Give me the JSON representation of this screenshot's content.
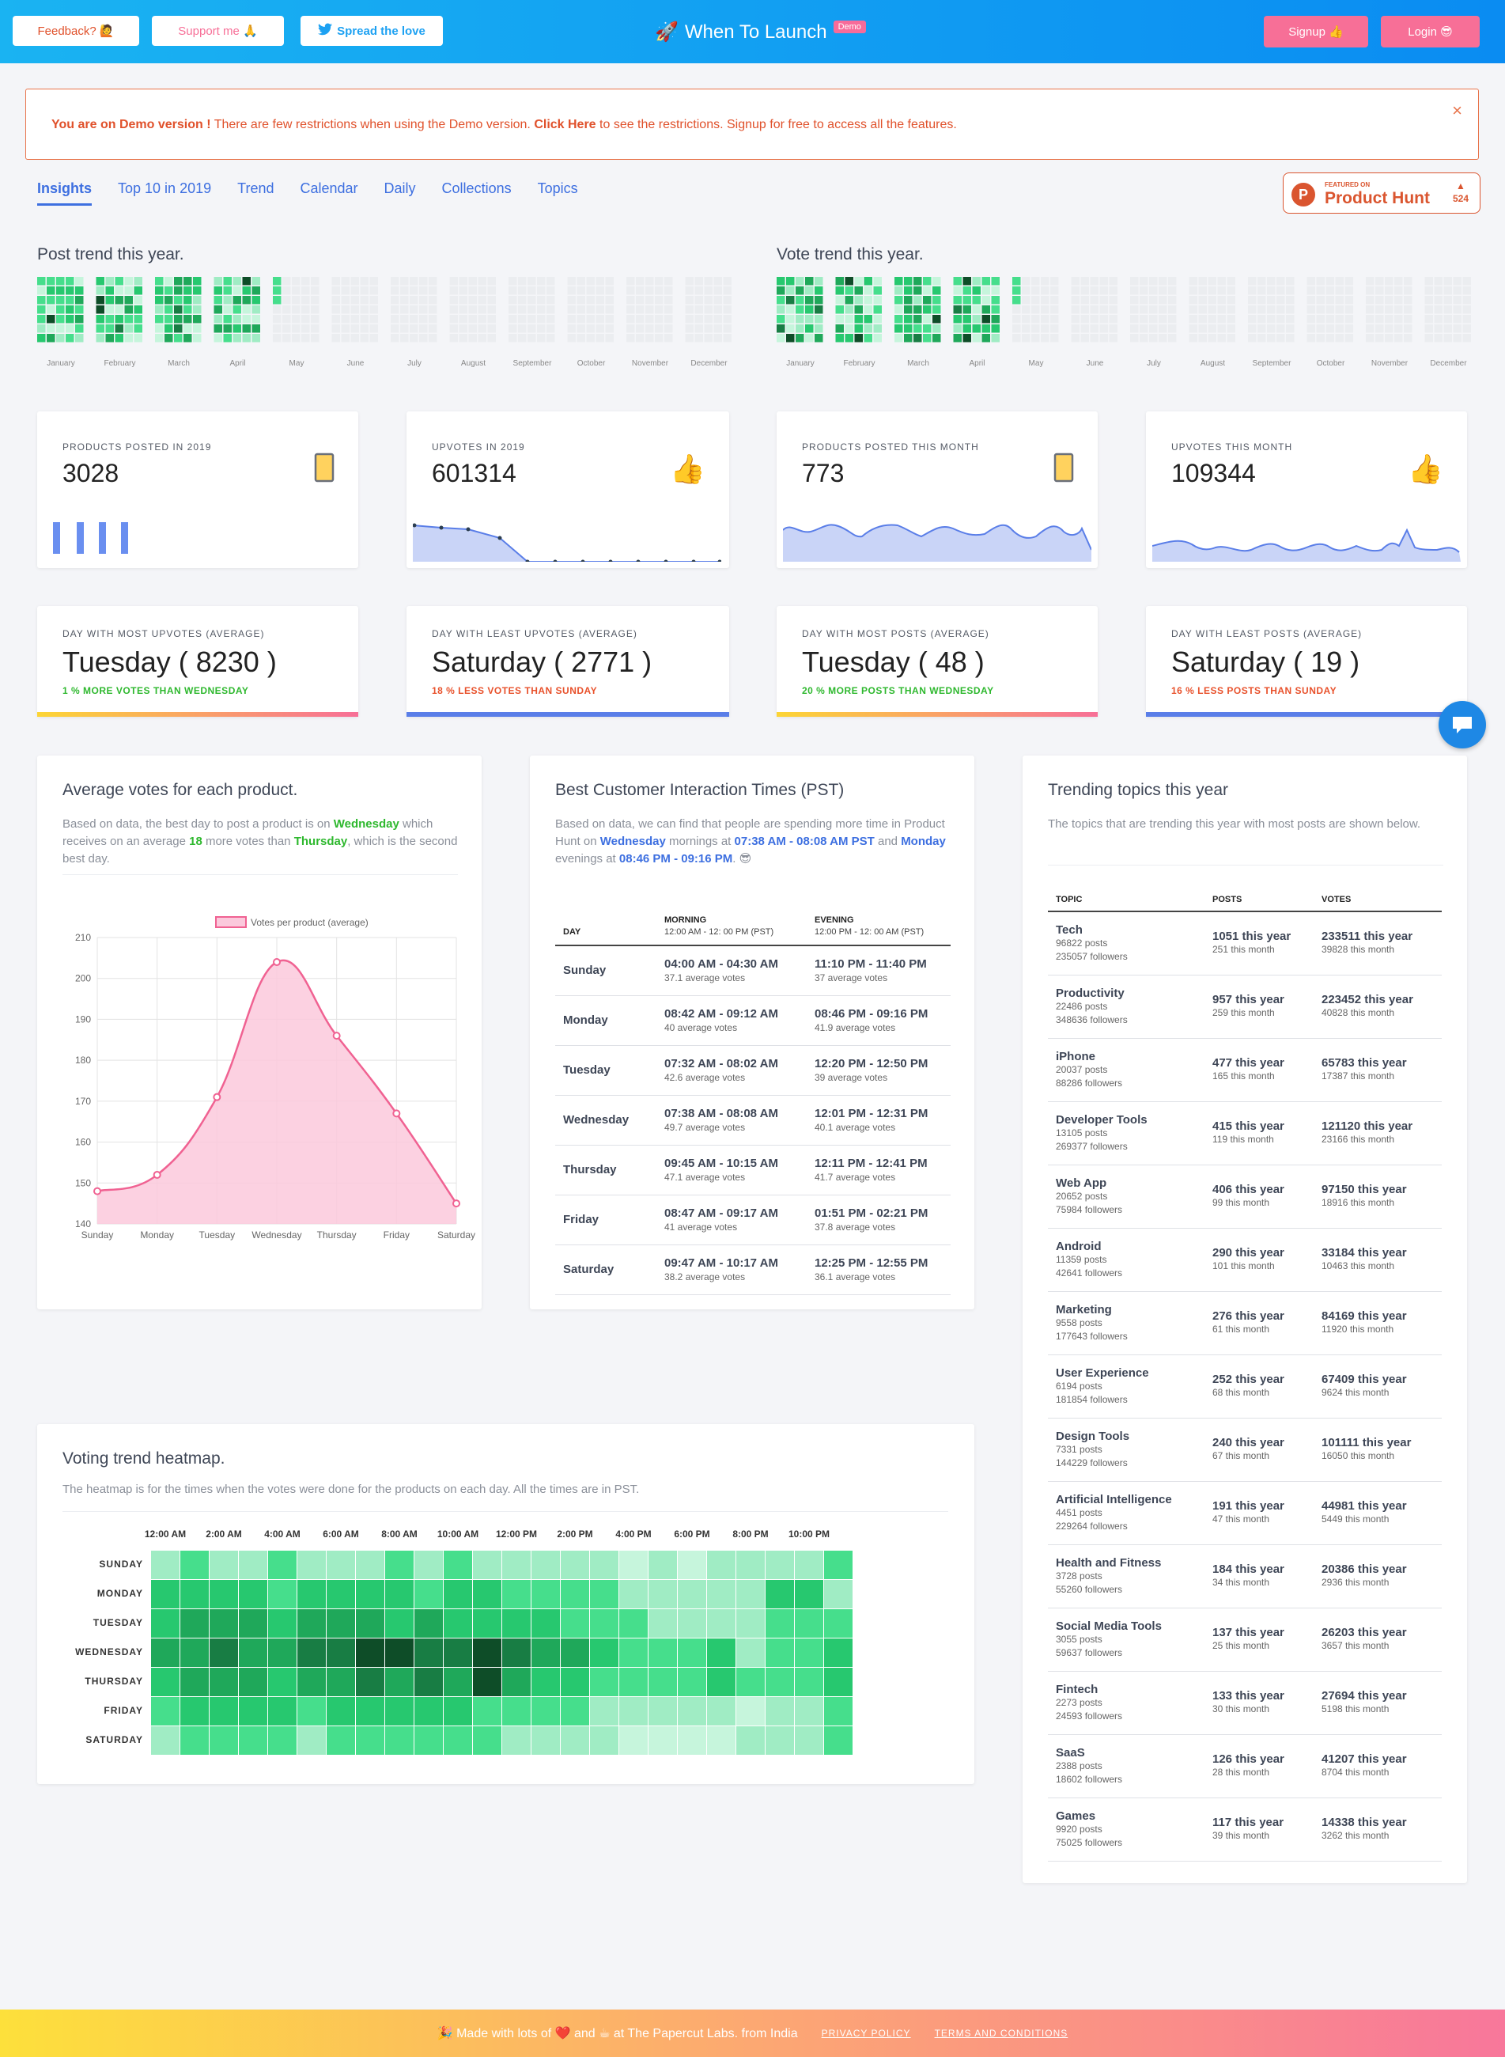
{
  "topbar": {
    "feedback_label": "Feedback? 🙋",
    "support_label": "Support me 🙏",
    "spread_label": "Spread the love",
    "app_title": "When To Launch",
    "demo_badge": "Demo",
    "signup_label": "Signup 👍",
    "login_label": "Login 😎"
  },
  "alert": {
    "lead": "You are on Demo version !",
    "text1": " There are few restrictions when using the Demo version. ",
    "link": "Click Here",
    "text2": " to see the restrictions. Signup for free to access all the features.",
    "close": "×"
  },
  "tabs": [
    "Insights",
    "Top 10 in 2019",
    "Trend",
    "Calendar",
    "Daily",
    "Collections",
    "Topics"
  ],
  "producthunt": {
    "small": "FEATURED ON",
    "big": "Product Hunt",
    "count": "524",
    "arrow": "▲",
    "p": "P"
  },
  "trend": {
    "post_title": "Post trend this year.",
    "vote_title": "Vote trend this year.",
    "months": [
      "January",
      "February",
      "March",
      "April",
      "May",
      "June",
      "July",
      "August",
      "September",
      "October",
      "November",
      "December"
    ]
  },
  "stats": [
    {
      "label": "PRODUCTS POSTED IN 2019",
      "value": "3028",
      "icon": "phone-icon"
    },
    {
      "label": "UPVOTES IN 2019",
      "value": "601314",
      "icon": "thumbs-up-icon"
    },
    {
      "label": "PRODUCTS POSTED THIS MONTH",
      "value": "773",
      "icon": "phone-icon"
    },
    {
      "label": "UPVOTES THIS MONTH",
      "value": "109344",
      "icon": "thumbs-up-icon"
    }
  ],
  "days": [
    {
      "label": "DAY WITH MOST UPVOTES (AVERAGE)",
      "value": "Tuesday ( 8230 )",
      "sub": "1 % MORE VOTES THAN WEDNESDAY",
      "sub_color": "#2eb82e"
    },
    {
      "label": "DAY WITH LEAST UPVOTES (AVERAGE)",
      "value": "Saturday ( 2771 )",
      "sub": "18 % LESS VOTES THAN SUNDAY",
      "sub_color": "#e8512b"
    },
    {
      "label": "DAY WITH MOST POSTS (AVERAGE)",
      "value": "Tuesday ( 48 )",
      "sub": "20 % MORE POSTS THAN WEDNESDAY",
      "sub_color": "#2eb82e"
    },
    {
      "label": "DAY WITH LEAST POSTS (AVERAGE)",
      "value": "Saturday ( 19 )",
      "sub": "16 % LESS POSTS THAN SUNDAY",
      "sub_color": "#e8512b"
    }
  ],
  "avg_votes": {
    "title": "Average votes for each product.",
    "d1": "Based on data, the best day to post a product is on ",
    "best": "Wednesday",
    "d2": " which receives on an average ",
    "num": "18",
    "d3": " more votes than ",
    "second": "Thursday",
    "d4": ", which is the second best day."
  },
  "chart_data": {
    "type": "line",
    "title": "",
    "legend": "Votes per product (average)",
    "categories": [
      "Sunday",
      "Monday",
      "Tuesday",
      "Wednesday",
      "Thursday",
      "Friday",
      "Saturday"
    ],
    "values": [
      148,
      152,
      171,
      204,
      186,
      167,
      145
    ],
    "ylim": [
      140,
      210
    ],
    "yticks": [
      140,
      150,
      160,
      170,
      180,
      190,
      200,
      210
    ],
    "xlabel": "",
    "ylabel": ""
  },
  "interaction": {
    "title": "Best Customer Interaction Times (PST)",
    "d1": "Based on data, we can find that people are spending more time in Product Hunt on ",
    "day1": "Wednesday",
    "d2": " mornings at ",
    "t1": "07:38 AM - 08:08 AM PST",
    "d3": " and ",
    "day2": "Monday",
    "d4": " evenings at ",
    "t2": "08:46 PM - 09:16 PM",
    "d5": ". 😎",
    "headers": {
      "day": "DAY",
      "morning": "MORNING",
      "morning_sub": "12:00 AM - 12: 00 PM (PST)",
      "evening": "EVENING",
      "evening_sub": "12:00 PM - 12: 00 AM (PST)"
    },
    "rows": [
      {
        "day": "Sunday",
        "m": "04:00 AM - 04:30 AM",
        "mv": "37.1 average votes",
        "e": "11:10 PM - 11:40 PM",
        "ev": "37 average votes"
      },
      {
        "day": "Monday",
        "m": "08:42 AM - 09:12 AM",
        "mv": "40 average votes",
        "e": "08:46 PM - 09:16 PM",
        "ev": "41.9 average votes"
      },
      {
        "day": "Tuesday",
        "m": "07:32 AM - 08:02 AM",
        "mv": "42.6 average votes",
        "e": "12:20 PM - 12:50 PM",
        "ev": "39 average votes"
      },
      {
        "day": "Wednesday",
        "m": "07:38 AM - 08:08 AM",
        "mv": "49.7 average votes",
        "e": "12:01 PM - 12:31 PM",
        "ev": "40.1 average votes"
      },
      {
        "day": "Thursday",
        "m": "09:45 AM - 10:15 AM",
        "mv": "47.1 average votes",
        "e": "12:11 PM - 12:41 PM",
        "ev": "41.7 average votes"
      },
      {
        "day": "Friday",
        "m": "08:47 AM - 09:17 AM",
        "mv": "41 average votes",
        "e": "01:51 PM - 02:21 PM",
        "ev": "37.8 average votes"
      },
      {
        "day": "Saturday",
        "m": "09:47 AM - 10:17 AM",
        "mv": "38.2 average votes",
        "e": "12:25 PM - 12:55 PM",
        "ev": "36.1 average votes"
      }
    ]
  },
  "topics": {
    "title": "Trending topics this year",
    "desc": "The topics that are trending this year with most posts are shown below.",
    "headers": [
      "TOPIC",
      "POSTS",
      "VOTES"
    ],
    "rows": [
      {
        "name": "Tech",
        "posts": "96822 posts",
        "followers": "235057 followers",
        "py": "1051 this year",
        "pm": "251 this month",
        "vy": "233511 this year",
        "vm": "39828 this month"
      },
      {
        "name": "Productivity",
        "posts": "22486 posts",
        "followers": "348636 followers",
        "py": "957 this year",
        "pm": "259 this month",
        "vy": "223452 this year",
        "vm": "40828 this month"
      },
      {
        "name": "iPhone",
        "posts": "20037 posts",
        "followers": "88286 followers",
        "py": "477 this year",
        "pm": "165 this month",
        "vy": "65783 this year",
        "vm": "17387 this month"
      },
      {
        "name": "Developer Tools",
        "posts": "13105 posts",
        "followers": "269377 followers",
        "py": "415 this year",
        "pm": "119 this month",
        "vy": "121120 this year",
        "vm": "23166 this month"
      },
      {
        "name": "Web App",
        "posts": "20652 posts",
        "followers": "75984 followers",
        "py": "406 this year",
        "pm": "99 this month",
        "vy": "97150 this year",
        "vm": "18916 this month"
      },
      {
        "name": "Android",
        "posts": "11359 posts",
        "followers": "42641 followers",
        "py": "290 this year",
        "pm": "101 this month",
        "vy": "33184 this year",
        "vm": "10463 this month"
      },
      {
        "name": "Marketing",
        "posts": "9558 posts",
        "followers": "177643 followers",
        "py": "276 this year",
        "pm": "61 this month",
        "vy": "84169 this year",
        "vm": "11920 this month"
      },
      {
        "name": "User Experience",
        "posts": "6194 posts",
        "followers": "181854 followers",
        "py": "252 this year",
        "pm": "68 this month",
        "vy": "67409 this year",
        "vm": "9624 this month"
      },
      {
        "name": "Design Tools",
        "posts": "7331 posts",
        "followers": "144229 followers",
        "py": "240 this year",
        "pm": "67 this month",
        "vy": "101111 this year",
        "vm": "16050 this month"
      },
      {
        "name": "Artificial Intelligence",
        "posts": "4451 posts",
        "followers": "229264 followers",
        "py": "191 this year",
        "pm": "47 this month",
        "vy": "44981 this year",
        "vm": "5449 this month"
      },
      {
        "name": "Health and Fitness",
        "posts": "3728 posts",
        "followers": "55260 followers",
        "py": "184 this year",
        "pm": "34 this month",
        "vy": "20386 this year",
        "vm": "2936 this month"
      },
      {
        "name": "Social Media Tools",
        "posts": "3055 posts",
        "followers": "59637 followers",
        "py": "137 this year",
        "pm": "25 this month",
        "vy": "26203 this year",
        "vm": "3657 this month"
      },
      {
        "name": "Fintech",
        "posts": "2273 posts",
        "followers": "24593 followers",
        "py": "133 this year",
        "pm": "30 this month",
        "vy": "27694 this year",
        "vm": "5198 this month"
      },
      {
        "name": "SaaS",
        "posts": "2388 posts",
        "followers": "18602 followers",
        "py": "126 this year",
        "pm": "28 this month",
        "vy": "41207 this year",
        "vm": "8704 this month"
      },
      {
        "name": "Games",
        "posts": "9920 posts",
        "followers": "75025 followers",
        "py": "117 this year",
        "pm": "39 this month",
        "vy": "14338 this year",
        "vm": "3262 this month"
      }
    ]
  },
  "heatmap": {
    "title": "Voting trend heatmap.",
    "desc": "The heatmap is for the times when the votes were done for the products on each day. All the times are in PST.",
    "hours": [
      "12:00 AM",
      "2:00 AM",
      "4:00 AM",
      "6:00 AM",
      "8:00 AM",
      "10:00 AM",
      "12:00 PM",
      "2:00 PM",
      "4:00 PM",
      "6:00 PM",
      "8:00 PM",
      "10:00 PM"
    ],
    "days": [
      "SUNDAY",
      "MONDAY",
      "TUESDAY",
      "WEDNESDAY",
      "THURSDAY",
      "FRIDAY",
      "SATURDAY"
    ],
    "levels": [
      [
        2,
        3,
        2,
        2,
        3,
        2,
        2,
        2,
        3,
        2,
        3,
        2,
        2,
        2,
        2,
        2,
        1,
        2,
        1,
        2,
        2,
        2,
        2,
        3
      ],
      [
        4,
        4,
        4,
        4,
        3,
        4,
        4,
        4,
        4,
        3,
        4,
        4,
        3,
        3,
        3,
        3,
        2,
        2,
        2,
        2,
        2,
        4,
        4,
        2
      ],
      [
        4,
        5,
        5,
        5,
        4,
        5,
        5,
        5,
        4,
        5,
        4,
        4,
        4,
        4,
        3,
        3,
        3,
        2,
        2,
        2,
        2,
        3,
        3,
        3
      ],
      [
        5,
        5,
        6,
        5,
        5,
        6,
        6,
        7,
        7,
        6,
        6,
        7,
        6,
        5,
        5,
        4,
        3,
        3,
        3,
        4,
        2,
        3,
        3,
        4
      ],
      [
        4,
        5,
        5,
        5,
        4,
        5,
        5,
        6,
        5,
        6,
        5,
        7,
        5,
        4,
        4,
        3,
        3,
        3,
        3,
        4,
        3,
        3,
        3,
        4
      ],
      [
        3,
        4,
        4,
        4,
        4,
        3,
        4,
        4,
        4,
        4,
        4,
        3,
        3,
        3,
        3,
        2,
        2,
        2,
        2,
        2,
        1,
        2,
        2,
        3
      ],
      [
        2,
        3,
        3,
        3,
        3,
        2,
        3,
        3,
        3,
        3,
        3,
        3,
        2,
        2,
        2,
        2,
        1,
        1,
        1,
        1,
        2,
        2,
        2,
        3
      ]
    ],
    "palette": [
      "#ffffff",
      "#c6f5dc",
      "#a0ecc4",
      "#46de8c",
      "#27c86f",
      "#1fa85a",
      "#187d44",
      "#0e4d28"
    ]
  },
  "footer": {
    "text": "🎉 Made with lots of ❤️ and ☕ at The Papercut Labs. from India",
    "privacy": "PRIVACY POLICY",
    "terms": "TERMS AND CONDITIONS"
  },
  "colors": {
    "green": "#2eb82e",
    "blue": "#3d6fe0",
    "pink": "#f76f97",
    "red": "#e8512b"
  }
}
